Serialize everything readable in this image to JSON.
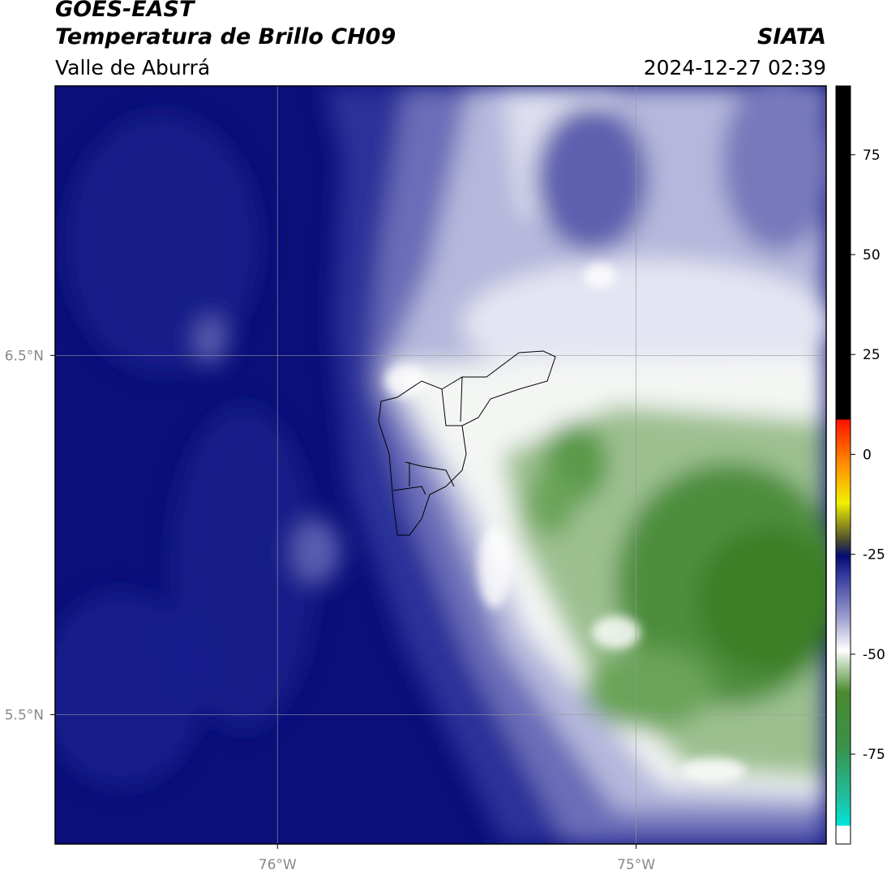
{
  "header": {
    "title": "GOES-EAST",
    "subtitle": "Temperatura de Brillo CH09",
    "region": "Valle de Aburrá",
    "agency": "SIATA",
    "datetime": "2024-12-27 02:39"
  },
  "map": {
    "xlim": [
      -76.62,
      -74.47
    ],
    "ylim": [
      5.14,
      7.25
    ],
    "xticks": [
      {
        "value": -76,
        "label": "76°W"
      },
      {
        "value": -75,
        "label": "75°W"
      }
    ],
    "yticks": [
      {
        "value": 6.5,
        "label": "6.5°N"
      },
      {
        "value": 5.5,
        "label": "5.5°N"
      }
    ],
    "grid": true
  },
  "colorbar": {
    "lim": [
      -97.5,
      92.2
    ],
    "ticks": [
      75,
      50,
      25,
      0,
      -25,
      -50,
      -75
    ]
  }
}
